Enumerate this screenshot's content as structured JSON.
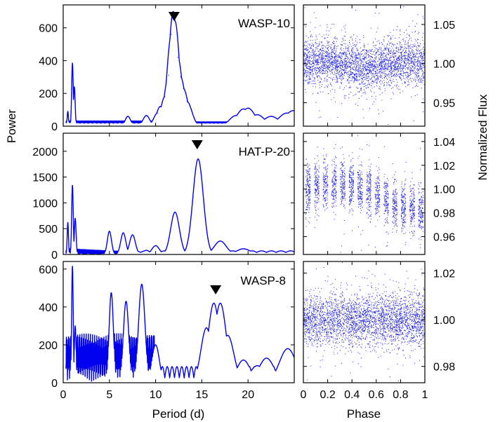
{
  "colors": {
    "series": "#0000ee",
    "dots": "#2020dd",
    "marker": "#000000"
  },
  "labels": {
    "left_ylabel": "Power",
    "left_xlabel": "Period (d)",
    "right_ylabel": "Normalized Flux",
    "right_xlabel": "Phase"
  },
  "chart_data": [
    {
      "type": "line",
      "name": "periodogram",
      "star": "WASP-10",
      "xlim": [
        0,
        25
      ],
      "ylim": [
        0,
        740
      ],
      "yticks": [
        0,
        200,
        400,
        600
      ],
      "ytick_labels": [
        "0",
        "200",
        "400",
        "600"
      ],
      "peak_marker_period": 12.0,
      "peaks": [
        {
          "p": 1.0,
          "h": 385
        },
        {
          "p": 1.2,
          "h": 240
        },
        {
          "p": 0.5,
          "h": 90
        },
        {
          "p": 11.0,
          "h": 180
        },
        {
          "p": 11.4,
          "h": 310
        },
        {
          "p": 11.7,
          "h": 560
        },
        {
          "p": 11.9,
          "h": 700
        },
        {
          "p": 12.1,
          "h": 640
        },
        {
          "p": 12.4,
          "h": 420
        },
        {
          "p": 12.7,
          "h": 300
        },
        {
          "p": 13.0,
          "h": 230
        },
        {
          "p": 13.4,
          "h": 150
        },
        {
          "p": 10.5,
          "h": 120
        },
        {
          "p": 10.2,
          "h": 80
        },
        {
          "p": 7.0,
          "h": 60
        },
        {
          "p": 9.0,
          "h": 65
        },
        {
          "p": 19.5,
          "h": 105
        },
        {
          "p": 20.0,
          "h": 110
        },
        {
          "p": 18.7,
          "h": 65
        },
        {
          "p": 21.0,
          "h": 70
        },
        {
          "p": 22.5,
          "h": 60
        },
        {
          "p": 24.2,
          "h": 80
        },
        {
          "p": 24.9,
          "h": 95
        }
      ]
    },
    {
      "type": "line",
      "name": "periodogram",
      "star": "HAT-P-20",
      "xlim": [
        0,
        25
      ],
      "ylim": [
        0,
        2350
      ],
      "yticks": [
        0,
        500,
        1000,
        1500,
        2000
      ],
      "ytick_labels": [
        "0",
        "500",
        "1000",
        "1500",
        "2000"
      ],
      "peak_marker_period": 14.5,
      "peaks": [
        {
          "p": 1.0,
          "h": 1340
        },
        {
          "p": 0.5,
          "h": 620
        },
        {
          "p": 1.3,
          "h": 700
        },
        {
          "p": 5.0,
          "h": 450
        },
        {
          "p": 6.5,
          "h": 420
        },
        {
          "p": 7.5,
          "h": 380
        },
        {
          "p": 9.0,
          "h": 80
        },
        {
          "p": 10.0,
          "h": 170
        },
        {
          "p": 12.1,
          "h": 820
        },
        {
          "p": 14.6,
          "h": 1850
        },
        {
          "p": 17.0,
          "h": 260
        },
        {
          "p": 19.5,
          "h": 110
        }
      ]
    },
    {
      "type": "line",
      "name": "periodogram",
      "star": "WASP-8",
      "xlim": [
        0,
        25
      ],
      "ylim": [
        0,
        640
      ],
      "yticks": [
        0,
        200,
        400,
        600
      ],
      "ytick_labels": [
        "0",
        "200",
        "400",
        "600"
      ],
      "xticks": [
        0,
        5,
        10,
        15,
        20
      ],
      "xtick_labels": [
        "0",
        "5",
        "10",
        "15",
        "20"
      ],
      "peak_marker_period": 16.5,
      "peaks": [
        {
          "p": 1.0,
          "h": 615
        },
        {
          "p": 1.3,
          "h": 300
        },
        {
          "p": 5.2,
          "h": 475
        },
        {
          "p": 6.8,
          "h": 430
        },
        {
          "p": 8.5,
          "h": 520
        },
        {
          "p": 10.0,
          "h": 200
        },
        {
          "p": 15.5,
          "h": 290
        },
        {
          "p": 16.3,
          "h": 420
        },
        {
          "p": 17.0,
          "h": 420
        },
        {
          "p": 17.8,
          "h": 250
        },
        {
          "p": 19.5,
          "h": 120
        },
        {
          "p": 21.0,
          "h": 90
        },
        {
          "p": 22.0,
          "h": 130
        },
        {
          "p": 24.3,
          "h": 180
        }
      ]
    },
    {
      "type": "scatter",
      "name": "phased-light-curve",
      "star": "WASP-10",
      "xlim": [
        0,
        1
      ],
      "ylim": [
        0.92,
        1.075
      ],
      "yticks": [
        0.95,
        1.0,
        1.05
      ],
      "ytick_labels": [
        "0.95",
        "1.00",
        "1.05"
      ],
      "center": 1.0,
      "spread": 0.015
    },
    {
      "type": "scatter",
      "name": "phased-light-curve",
      "star": "HAT-P-20",
      "xlim": [
        0,
        1
      ],
      "ylim": [
        0.945,
        1.047
      ],
      "yticks": [
        0.96,
        0.98,
        1.0,
        1.02,
        1.04
      ],
      "ytick_labels": [
        "0.96",
        "0.98",
        "1.00",
        "1.02",
        "1.04"
      ],
      "center": 1.0,
      "spread": 0.01
    },
    {
      "type": "scatter",
      "name": "phased-light-curve",
      "star": "WASP-8",
      "xlim": [
        0,
        1
      ],
      "ylim": [
        0.973,
        1.025
      ],
      "yticks": [
        0.98,
        1.0,
        1.02
      ],
      "ytick_labels": [
        "0.98",
        "1.00",
        "1.02"
      ],
      "xticks": [
        0,
        0.2,
        0.4,
        0.6,
        0.8,
        1
      ],
      "xtick_labels": [
        "0",
        "0.2",
        "0.4",
        "0.6",
        "0.8",
        "1"
      ],
      "center": 1.0,
      "spread": 0.0055
    }
  ]
}
